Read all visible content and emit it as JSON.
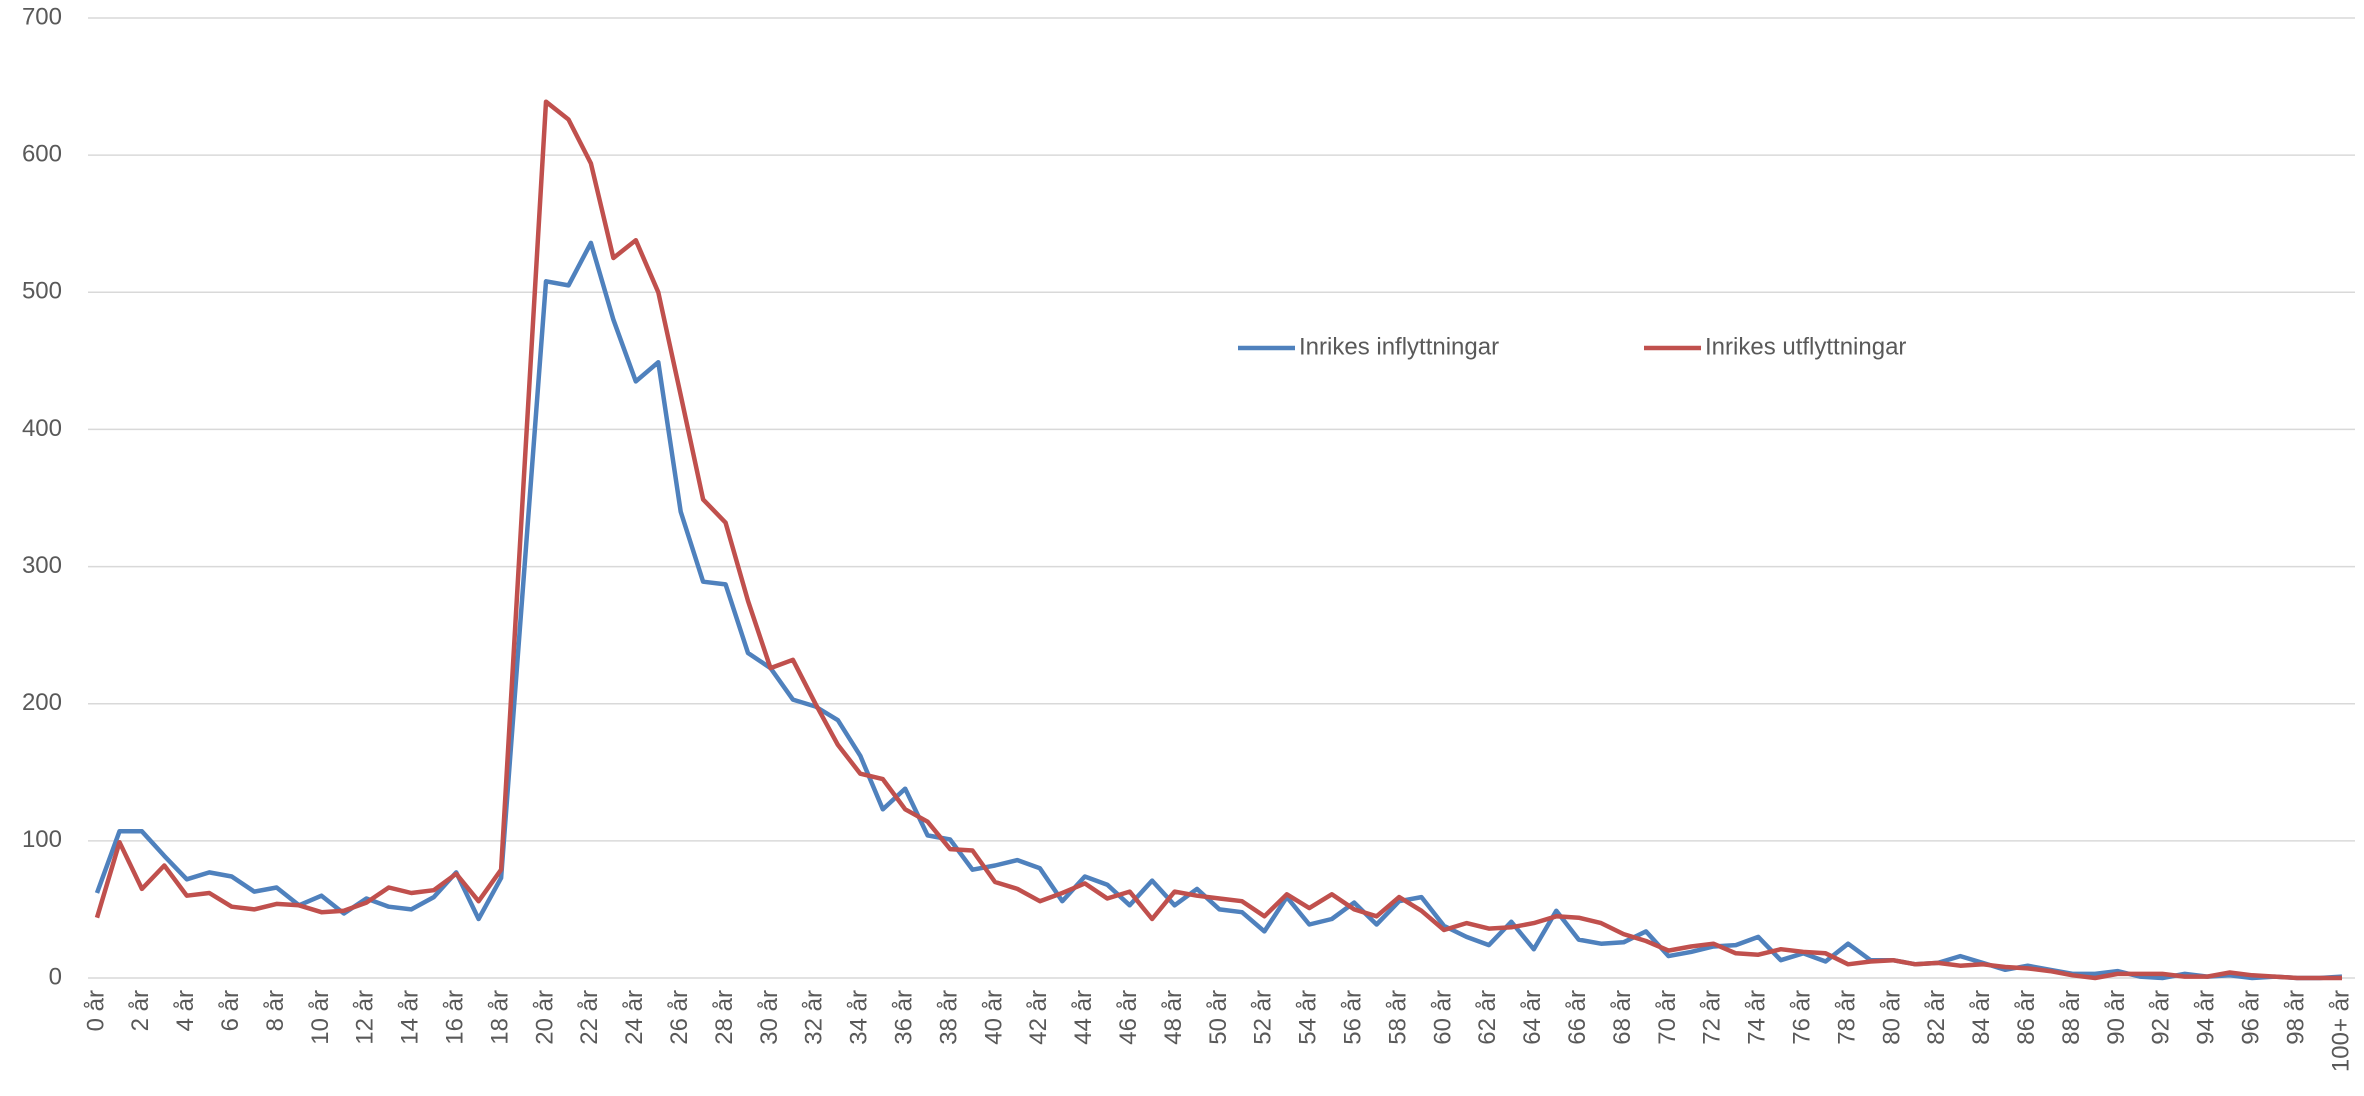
{
  "chart_data": {
    "type": "line",
    "categories": [
      "0 år",
      null,
      "2 år",
      null,
      "4 år",
      null,
      "6 år",
      null,
      "8 år",
      null,
      "10 år",
      null,
      "12 år",
      null,
      "14 år",
      null,
      "16 år",
      null,
      "18 år",
      null,
      "20 år",
      null,
      "22 år",
      null,
      "24 år",
      null,
      "26 år",
      null,
      "28 år",
      null,
      "30 år",
      null,
      "32 år",
      null,
      "34 år",
      null,
      "36 år",
      null,
      "38 år",
      null,
      "40 år",
      null,
      "42 år",
      null,
      "44 år",
      null,
      "46 år",
      null,
      "48 år",
      null,
      "50 år",
      null,
      "52 år",
      null,
      "54 år",
      null,
      "56 år",
      null,
      "58 år",
      null,
      "60 år",
      null,
      "62 år",
      null,
      "64 år",
      null,
      "66 år",
      null,
      "68 år",
      null,
      "70 år",
      null,
      "72 år",
      null,
      "74 år",
      null,
      "76 år",
      null,
      "78 år",
      null,
      "80 år",
      null,
      "82 år",
      null,
      "84 år",
      null,
      "86 år",
      null,
      "88 år",
      null,
      "90 år",
      null,
      "92 år",
      null,
      "94 år",
      null,
      "96 år",
      null,
      "98 år",
      null,
      "100+ år"
    ],
    "series": [
      {
        "name": "Inrikes inflyttningar",
        "color": "#4f81bd",
        "values": [
          62,
          107,
          107,
          89,
          72,
          77,
          74,
          63,
          66,
          53,
          60,
          47,
          58,
          52,
          50,
          59,
          77,
          43,
          73,
          290,
          508,
          505,
          536,
          480,
          435,
          449,
          340,
          289,
          287,
          237,
          226,
          203,
          198,
          188,
          162,
          123,
          138,
          104,
          101,
          79,
          82,
          86,
          80,
          56,
          74,
          68,
          53,
          71,
          53,
          65,
          50,
          48,
          34,
          59,
          39,
          43,
          55,
          39,
          56,
          59,
          38,
          30,
          24,
          41,
          21,
          49,
          28,
          25,
          26,
          34,
          16,
          19,
          23,
          24,
          30,
          13,
          18,
          12,
          25,
          13,
          13,
          10,
          11,
          16,
          11,
          6,
          9,
          6,
          3,
          3,
          5,
          1,
          0,
          3,
          1,
          2,
          0,
          1,
          0,
          0,
          1
        ]
      },
      {
        "name": "Inrikes utflyttningar",
        "color": "#c0504d",
        "values": [
          44,
          99,
          65,
          82,
          60,
          62,
          52,
          50,
          54,
          53,
          48,
          49,
          55,
          66,
          62,
          64,
          76,
          56,
          79,
          360,
          639,
          626,
          594,
          525,
          538,
          500,
          425,
          349,
          332,
          275,
          226,
          232,
          200,
          170,
          149,
          145,
          123,
          114,
          94,
          93,
          70,
          65,
          56,
          62,
          69,
          58,
          63,
          43,
          63,
          60,
          58,
          56,
          45,
          61,
          51,
          61,
          50,
          45,
          59,
          49,
          35,
          40,
          36,
          37,
          40,
          45,
          44,
          40,
          32,
          27,
          20,
          23,
          25,
          18,
          17,
          21,
          19,
          18,
          10,
          12,
          13,
          10,
          11,
          9,
          10,
          8,
          7,
          5,
          2,
          0,
          3,
          3,
          3,
          1,
          1,
          4,
          2,
          1,
          0,
          0,
          0
        ]
      }
    ],
    "ylim": [
      0,
      700
    ],
    "yticks": [
      0,
      100,
      200,
      300,
      400,
      500,
      600,
      700
    ],
    "grid": true,
    "legend": "center"
  }
}
